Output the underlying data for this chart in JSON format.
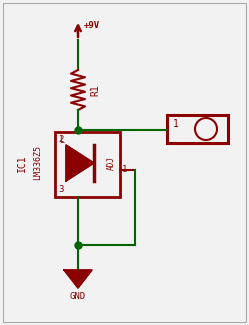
{
  "bg_color": "#f2f2f2",
  "border_color": "#aaaaaa",
  "wire_color": "#006600",
  "comp_color": "#8b0000",
  "fig_width": 2.49,
  "fig_height": 3.25,
  "dpi": 100,
  "xlim": [
    0,
    249
  ],
  "ylim": [
    0,
    325
  ]
}
